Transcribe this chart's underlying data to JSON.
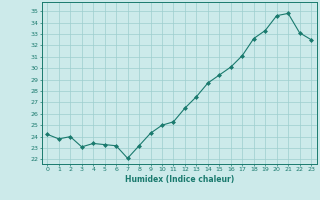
{
  "x": [
    0,
    1,
    2,
    3,
    4,
    5,
    6,
    7,
    8,
    9,
    10,
    11,
    12,
    13,
    14,
    15,
    16,
    17,
    18,
    19,
    20,
    21,
    22,
    23
  ],
  "y": [
    24.2,
    23.8,
    24.0,
    23.1,
    23.4,
    23.3,
    23.2,
    22.1,
    23.2,
    24.3,
    25.0,
    25.3,
    26.5,
    27.5,
    28.7,
    29.4,
    30.1,
    31.1,
    32.6,
    33.3,
    34.6,
    34.8,
    33.1,
    32.5
  ],
  "line_color": "#1a7a6e",
  "marker": "D",
  "markersize": 2.0,
  "bg_color": "#cceaea",
  "grid_color": "#9ecece",
  "xlabel": "Humidex (Indice chaleur)",
  "ylabel_ticks": [
    22,
    23,
    24,
    25,
    26,
    27,
    28,
    29,
    30,
    31,
    32,
    33,
    34,
    35
  ],
  "ylim": [
    21.6,
    35.8
  ],
  "xlim": [
    -0.5,
    23.5
  ]
}
